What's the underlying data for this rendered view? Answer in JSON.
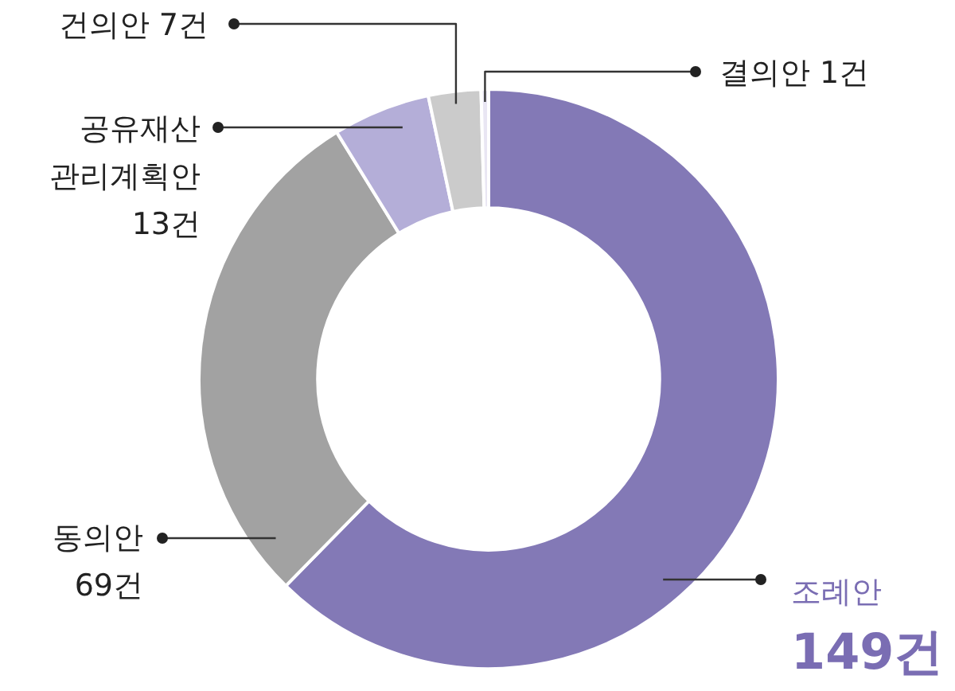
{
  "chart_data": {
    "type": "donut",
    "categories": [
      "조례안",
      "동의안",
      "공유재산 관리계획안",
      "건의안",
      "결의안"
    ],
    "values": [
      149,
      69,
      13,
      7,
      1
    ],
    "colors": [
      "#8379b6",
      "#a2a2a2",
      "#b4aed8",
      "#cbcbcb",
      "#e9e6f3"
    ],
    "value_labels": [
      "149건",
      "69건",
      "13건",
      "7건",
      "1건"
    ]
  }
}
